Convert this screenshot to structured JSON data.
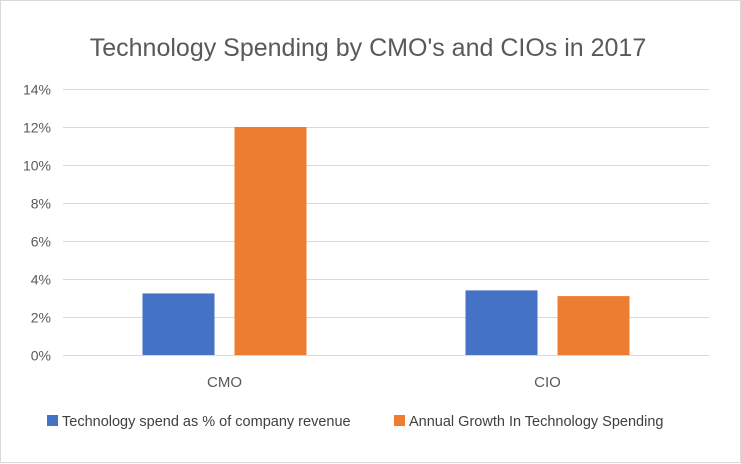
{
  "chart_data": {
    "type": "bar",
    "title": "Technology Spending by CMO's and CIOs in 2017",
    "xlabel": "",
    "ylabel": "",
    "categories": [
      "CMO",
      "CIO"
    ],
    "series": [
      {
        "name": "Technology spend as % of company revenue",
        "color": "#4472c4",
        "values": [
          3.24,
          3.4
        ]
      },
      {
        "name": "Annual Growth In Technology Spending",
        "color": "#ed7d31",
        "values": [
          12.0,
          3.1
        ]
      }
    ],
    "ylim": [
      0,
      14
    ],
    "yticks": [
      0,
      2,
      4,
      6,
      8,
      10,
      12,
      14
    ],
    "ytick_labels": [
      "0%",
      "2%",
      "4%",
      "6%",
      "8%",
      "10%",
      "12%",
      "14%"
    ],
    "grid": true,
    "legend_position": "bottom"
  }
}
